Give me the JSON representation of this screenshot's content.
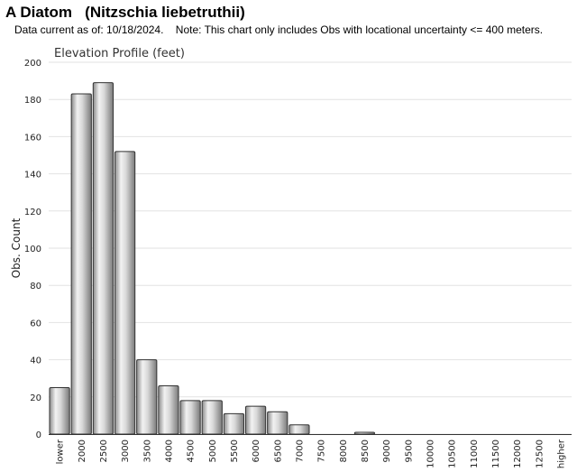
{
  "header": {
    "title": "A Diatom   (Nitzschia liebetruthii)",
    "subtitle": "Data current as of: 10/18/2024.    Note: This chart only includes Obs with locational uncertainty <= 400 meters."
  },
  "chart_data": {
    "type": "bar",
    "title": "Elevation Profile (feet)",
    "xlabel": "",
    "ylabel": "Obs. Count",
    "ylim": [
      0,
      200
    ],
    "yticks": [
      0,
      20,
      40,
      60,
      80,
      100,
      120,
      140,
      160,
      180,
      200
    ],
    "grid": true,
    "legend": "none",
    "categories": [
      "lower",
      "2000",
      "2500",
      "3000",
      "3500",
      "4000",
      "4500",
      "5000",
      "5500",
      "6000",
      "6500",
      "7000",
      "7500",
      "8000",
      "8500",
      "9000",
      "9500",
      "10000",
      "10500",
      "11000",
      "11500",
      "12000",
      "12500",
      "higher"
    ],
    "values": [
      25,
      183,
      189,
      152,
      40,
      26,
      18,
      18,
      11,
      15,
      12,
      5,
      0,
      0,
      1,
      0,
      0,
      0,
      0,
      0,
      0,
      0,
      0,
      0
    ],
    "bar_color": "#b8b8b8",
    "bar_edge_color": "#333333"
  }
}
